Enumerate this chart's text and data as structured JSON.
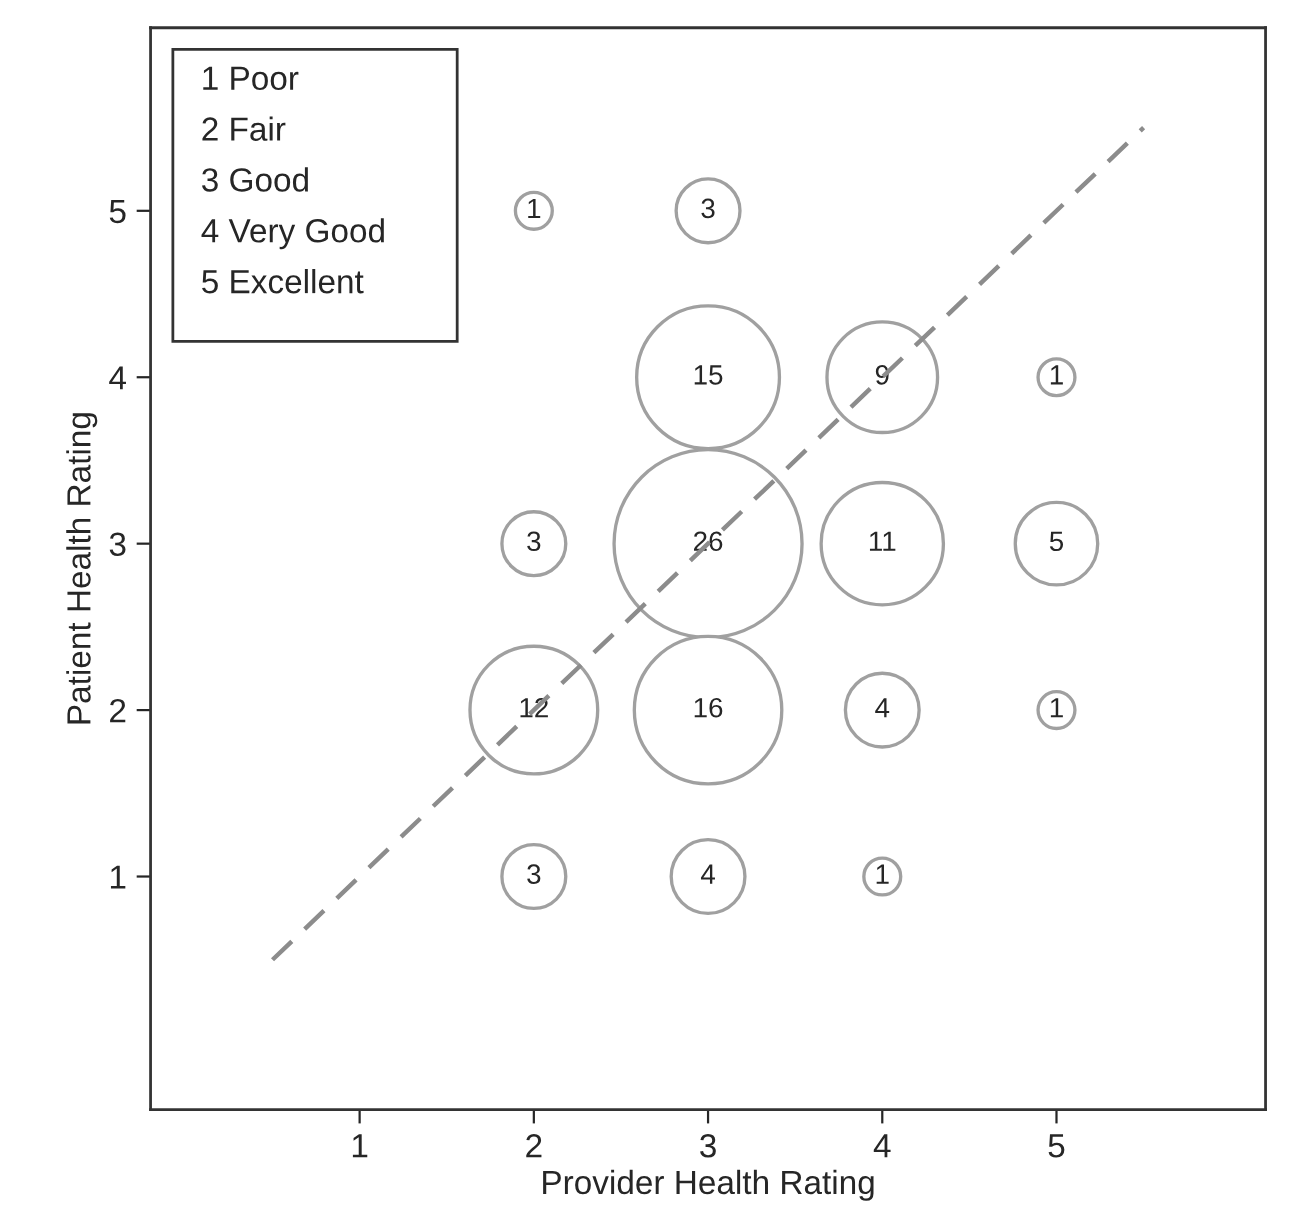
{
  "chart_data": {
    "type": "bubble",
    "xlabel": "Provider Health Rating",
    "ylabel": "Patient Health Rating",
    "xlim": [
      -0.2,
      6.2
    ],
    "ylim": [
      -0.4,
      6.1
    ],
    "xticks": [
      1,
      2,
      3,
      4,
      5
    ],
    "yticks": [
      1,
      2,
      3,
      4,
      5
    ],
    "grid": false,
    "annotations": [
      "1 Poor",
      "2 Fair",
      "3 Good",
      "4 Very Good",
      "5 Excellent"
    ],
    "series": [
      {
        "color": "#a0a0a0",
        "x": [
          2,
          3,
          3,
          4,
          5,
          2,
          3,
          4,
          5,
          2,
          3,
          4,
          5,
          2,
          3,
          4
        ],
        "values": [
          5,
          5,
          4,
          4,
          4,
          3,
          3,
          3,
          3,
          2,
          2,
          2,
          2,
          1,
          1,
          1
        ],
        "sizes": [
          1,
          3,
          15,
          9,
          1,
          3,
          26,
          11,
          5,
          12,
          16,
          4,
          1,
          3,
          4,
          1
        ],
        "value_labels": [
          "1",
          "3",
          "15",
          "9",
          "1",
          "3",
          "26",
          "11",
          "5",
          "12",
          "16",
          "4",
          "1",
          "3",
          "4",
          "1"
        ]
      },
      {
        "type": "line",
        "color": "#8c8c8c",
        "line_style": "dashed",
        "x": [
          0.5,
          5.5
        ],
        "values": [
          0.5,
          5.5
        ]
      }
    ]
  }
}
